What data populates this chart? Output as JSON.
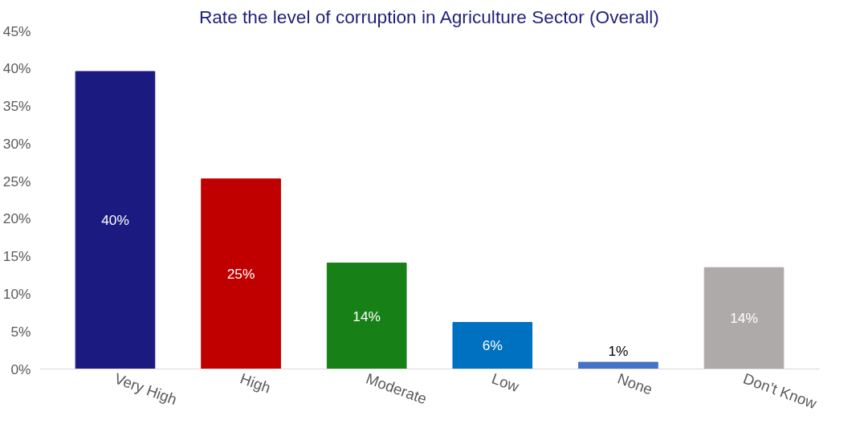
{
  "chart_data": {
    "type": "bar",
    "title": "Rate the level of corruption in Agriculture Sector (Overall)",
    "categories": [
      "Very High",
      "High",
      "Moderate",
      "Low",
      "None",
      "Don’t Know"
    ],
    "values": [
      39.6,
      25.3,
      14.1,
      6.2,
      0.9,
      13.5
    ],
    "value_labels": [
      "40%",
      "25%",
      "14%",
      "6%",
      "1%",
      "14%"
    ],
    "colors": [
      "#1a1a80",
      "#c00000",
      "#178017",
      "#0070c0",
      "#4472c4",
      "#aeaaaa"
    ],
    "ylim": [
      0,
      45
    ],
    "yticks": [
      {
        "value": 0,
        "label": "0%"
      },
      {
        "value": 5,
        "label": "5%"
      },
      {
        "value": 10,
        "label": "10%"
      },
      {
        "value": 15,
        "label": "15%"
      },
      {
        "value": 20,
        "label": "20%"
      },
      {
        "value": 25,
        "label": "25%"
      },
      {
        "value": 30,
        "label": "30%"
      },
      {
        "value": 35,
        "label": "35%"
      },
      {
        "value": 40,
        "label": "40%"
      },
      {
        "value": 45,
        "label": "45%"
      }
    ],
    "grid": false
  }
}
